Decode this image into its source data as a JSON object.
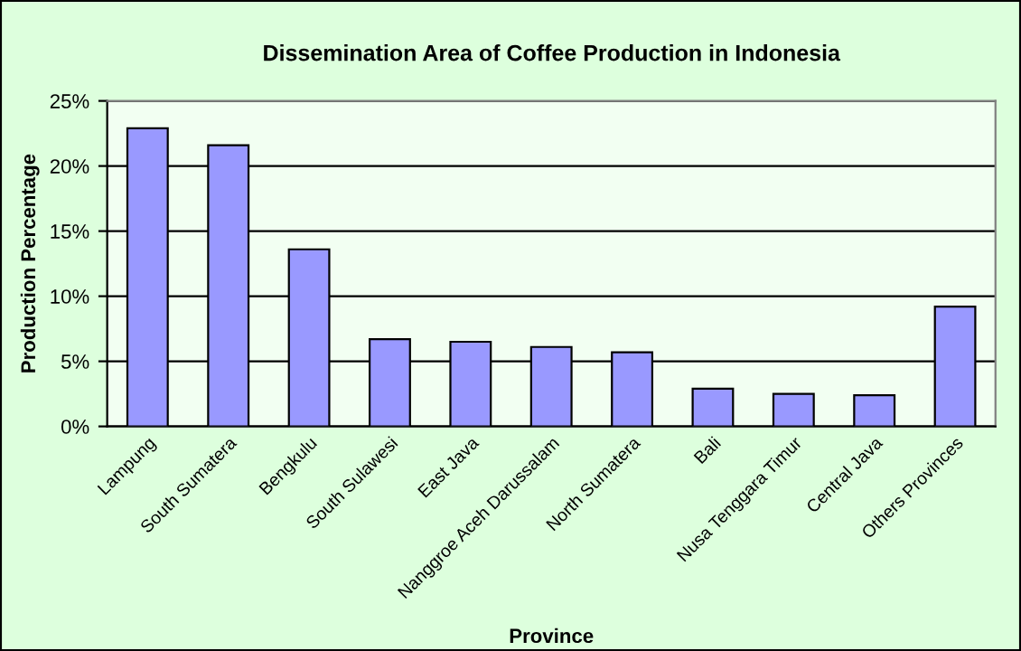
{
  "chart_data": {
    "type": "bar",
    "title": "Dissemination Area of Coffee Production in Indonesia",
    "xlabel": "Province",
    "ylabel": "Production Percentage",
    "categories": [
      "Lampung",
      "South Sumatera",
      "Bengkulu",
      "South Sulawesi",
      "East Java",
      "Nanggroe Aceh Darussalam",
      "North Sumatera",
      "Bali",
      "Nusa Tenggara Timur",
      "Central Java",
      "Others Provinces"
    ],
    "values": [
      22.9,
      21.6,
      13.6,
      6.7,
      6.5,
      6.1,
      5.7,
      2.9,
      2.5,
      2.4,
      9.2
    ],
    "color": "#9999ff",
    "ylim": [
      0,
      25
    ],
    "yticks": [
      {
        "value": 0,
        "label": "0%"
      },
      {
        "value": 5,
        "label": "5%"
      },
      {
        "value": 10,
        "label": "10%"
      },
      {
        "value": 15,
        "label": "15%"
      },
      {
        "value": 20,
        "label": "20%"
      },
      {
        "value": 25,
        "label": "25%"
      }
    ],
    "grid": "y"
  }
}
